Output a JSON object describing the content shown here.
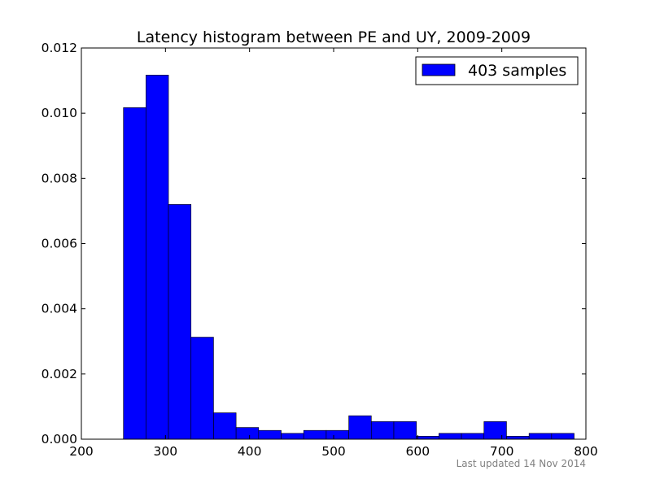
{
  "chart_data": {
    "type": "bar",
    "title": "Latency histogram between PE and UY, 2009-2009",
    "xlabel": "",
    "ylabel": "",
    "xlim": [
      200,
      800
    ],
    "ylim": [
      0,
      0.012
    ],
    "xticks": [
      200,
      300,
      400,
      500,
      600,
      700,
      800
    ],
    "yticks": [
      0.0,
      0.002,
      0.004,
      0.006,
      0.008,
      0.01,
      0.012
    ],
    "xtick_labels": [
      "200",
      "300",
      "400",
      "500",
      "600",
      "700",
      "800"
    ],
    "ytick_labels": [
      "0.000",
      "0.002",
      "0.004",
      "0.006",
      "0.008",
      "0.010",
      "0.012"
    ],
    "bin_edges": [
      250,
      276.8,
      303.6,
      330.4,
      357.2,
      384,
      410.8,
      437.6,
      464.4,
      491.2,
      518,
      544.8,
      571.6,
      598.4,
      625.2,
      652,
      678.8,
      705.6,
      732.4,
      759.2,
      786
    ],
    "values": [
      0.01017,
      0.01117,
      0.0072,
      0.00313,
      0.00081,
      0.00036,
      0.00027,
      0.00018,
      0.00027,
      0.00027,
      0.00072,
      0.00054,
      0.00054,
      9e-05,
      0.00018,
      0.00018,
      0.00054,
      9e-05,
      0.00018,
      0.00018
    ],
    "series": [
      {
        "name": "403 samples",
        "color": "#0000ff"
      }
    ],
    "legend_position": "top-right",
    "grid": false,
    "footnote": "Last updated 14 Nov 2014"
  }
}
